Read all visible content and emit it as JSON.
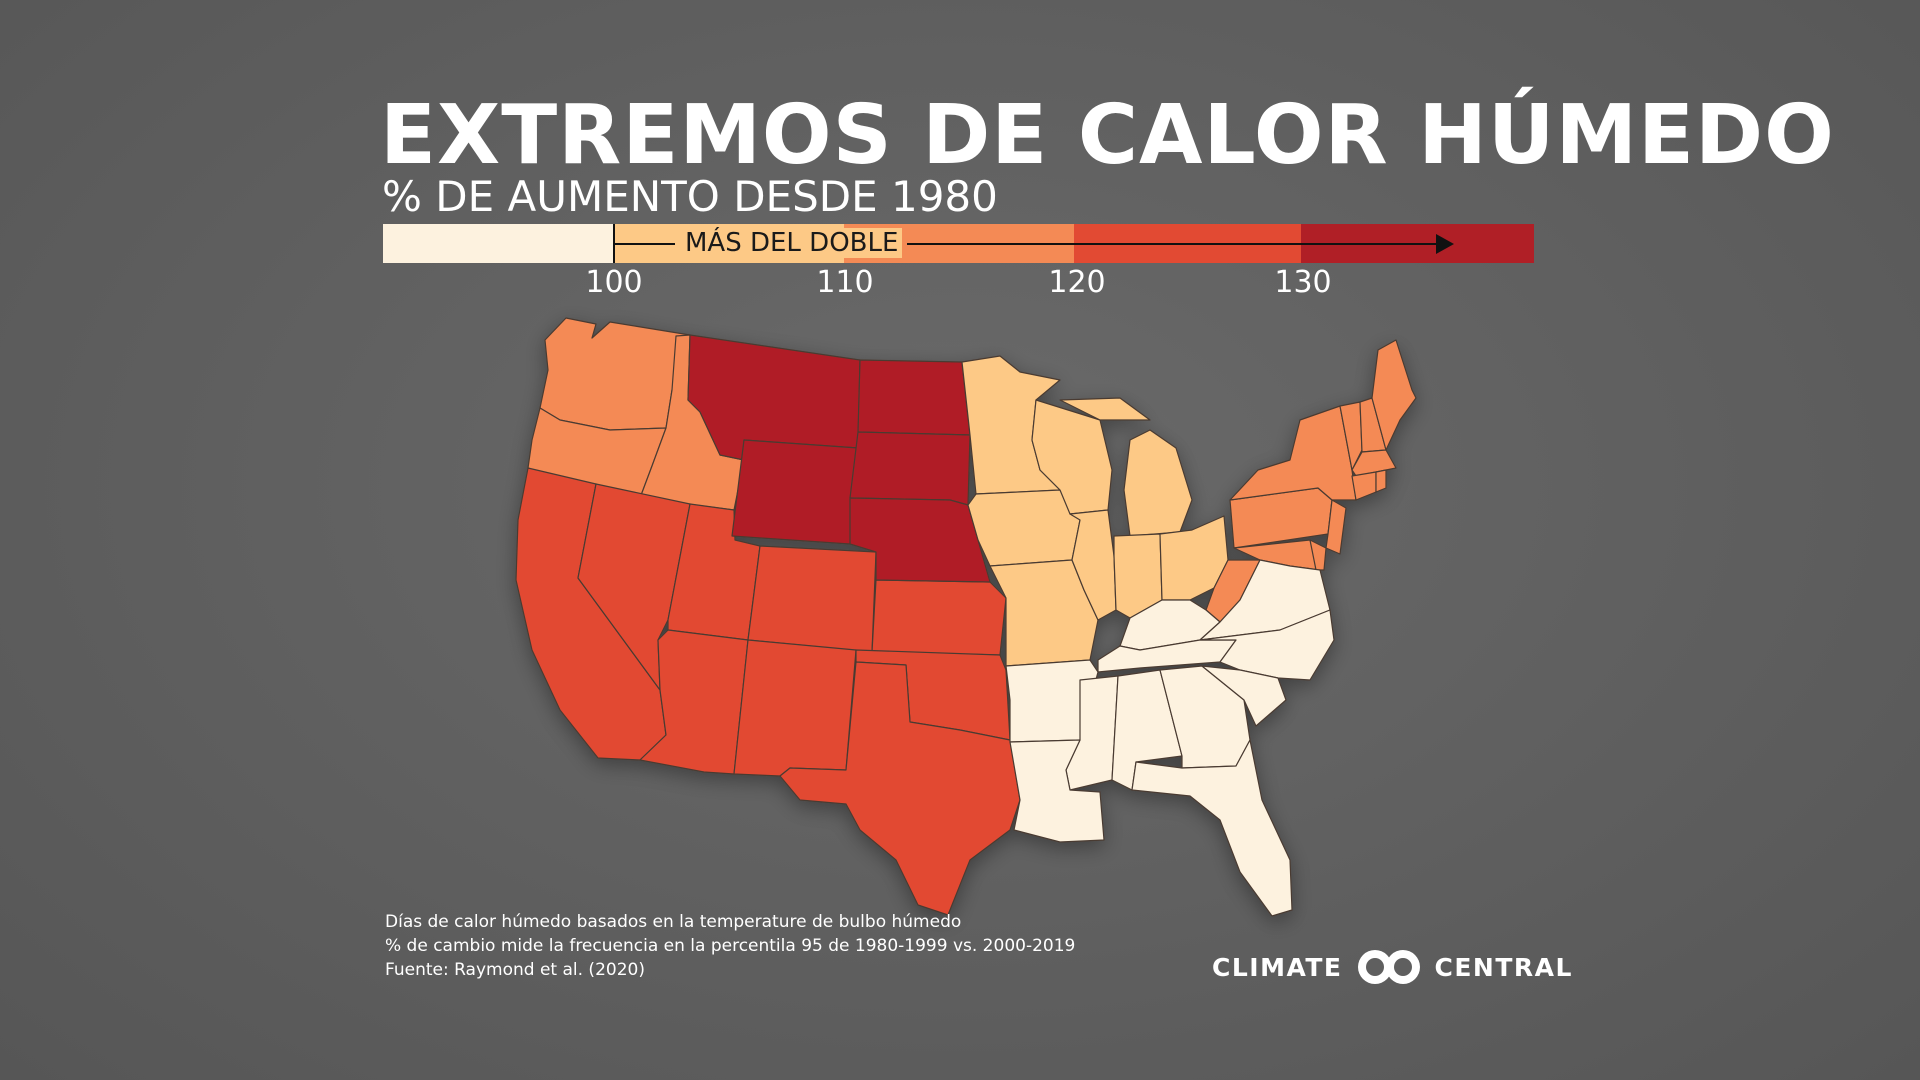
{
  "title": "EXTREMOS DE CALOR HÚMEDO",
  "subtitle": "% DE AUMENTO DESDE 1980",
  "legend": {
    "label": "MÁS DEL DOBLE",
    "ticks": [
      "100",
      "110",
      "120",
      "130"
    ],
    "colors": [
      "#fdf2df",
      "#fdc986",
      "#f48a55",
      "#e24a33",
      "#b01f26"
    ]
  },
  "notes": [
    "Días de calor húmedo basados en la temperature de bulbo húmedo",
    "% de cambio mide la frecuencia en la percentila 95 de 1980-1999 vs. 2000-2019",
    "Fuente: Raymond et al. (2020)"
  ],
  "brand": {
    "left": "CLIMATE",
    "right": "CENTRAL"
  },
  "regions": {
    "northern_plains": {
      "states": [
        "Montana",
        "Wyoming",
        "North Dakota",
        "South Dakota",
        "Nebraska"
      ],
      "color": "#b01f26"
    },
    "southwest": {
      "states": [
        "California",
        "Nevada",
        "Utah",
        "Colorado",
        "Arizona",
        "New Mexico",
        "Kansas",
        "Oklahoma",
        "Texas"
      ],
      "color": "#e24a33"
    },
    "pacific_northwest": {
      "states": [
        "Washington",
        "Oregon",
        "Idaho"
      ],
      "color": "#f48a55"
    },
    "northeast": {
      "states": [
        "Pennsylvania",
        "New York",
        "New Jersey",
        "Maryland",
        "Delaware",
        "West Virginia",
        "Vermont",
        "New Hampshire",
        "Maine",
        "Massachusetts",
        "Connecticut",
        "Rhode Island"
      ],
      "color": "#f48a55"
    },
    "midwest": {
      "states": [
        "Minnesota",
        "Iowa",
        "Missouri",
        "Wisconsin",
        "Illinois",
        "Michigan",
        "Indiana",
        "Ohio"
      ],
      "color": "#fdc986"
    },
    "southeast": {
      "states": [
        "Kentucky",
        "Tennessee",
        "Virginia",
        "North Carolina",
        "South Carolina",
        "Georgia",
        "Florida",
        "Alabama",
        "Mississippi",
        "Arkansas",
        "Louisiana"
      ],
      "color": "#fdf2df"
    }
  }
}
